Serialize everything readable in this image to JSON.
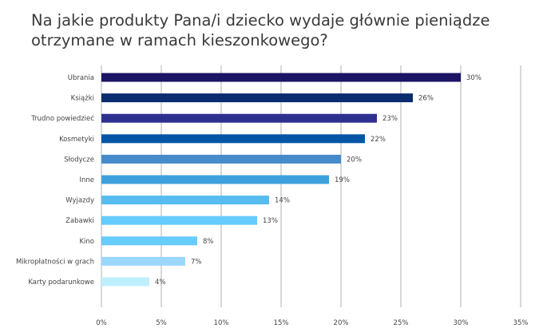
{
  "chart_data": {
    "type": "bar",
    "orientation": "horizontal",
    "title": "Na jakie produkty Pana/i dziecko wydaje głównie pieniądze otrzymane w ramach kieszonkowego?",
    "xlabel": "",
    "ylabel": "",
    "xlim": [
      0,
      35
    ],
    "grid": true,
    "categories": [
      "Ubrania",
      "Książki",
      "Trudno powiedzieć",
      "Kosmetyki",
      "Słodycze",
      "Inne",
      "Wyjazdy",
      "Zabawki",
      "Kino",
      "Mikropłatności w grach",
      "Karty podarunkowe"
    ],
    "values": [
      30,
      26,
      23,
      22,
      20,
      19,
      14,
      13,
      8,
      7,
      4
    ],
    "value_labels": [
      "30%",
      "26%",
      "23%",
      "22%",
      "20%",
      "19%",
      "14%",
      "13%",
      "8%",
      "7%",
      "4%"
    ],
    "colors": [
      "#1c1464",
      "#0b2c6e",
      "#2e3190",
      "#0455a5",
      "#458bcb",
      "#3fa1dc",
      "#56bbee",
      "#66cbfd",
      "#66cbfd",
      "#9bd8ff",
      "#bdefff"
    ],
    "ticks": [
      0,
      5,
      10,
      15,
      20,
      25,
      30,
      35
    ],
    "tick_labels": [
      "0%",
      "5%",
      "10%",
      "15%",
      "20%",
      "25%",
      "30%",
      "35%"
    ]
  }
}
